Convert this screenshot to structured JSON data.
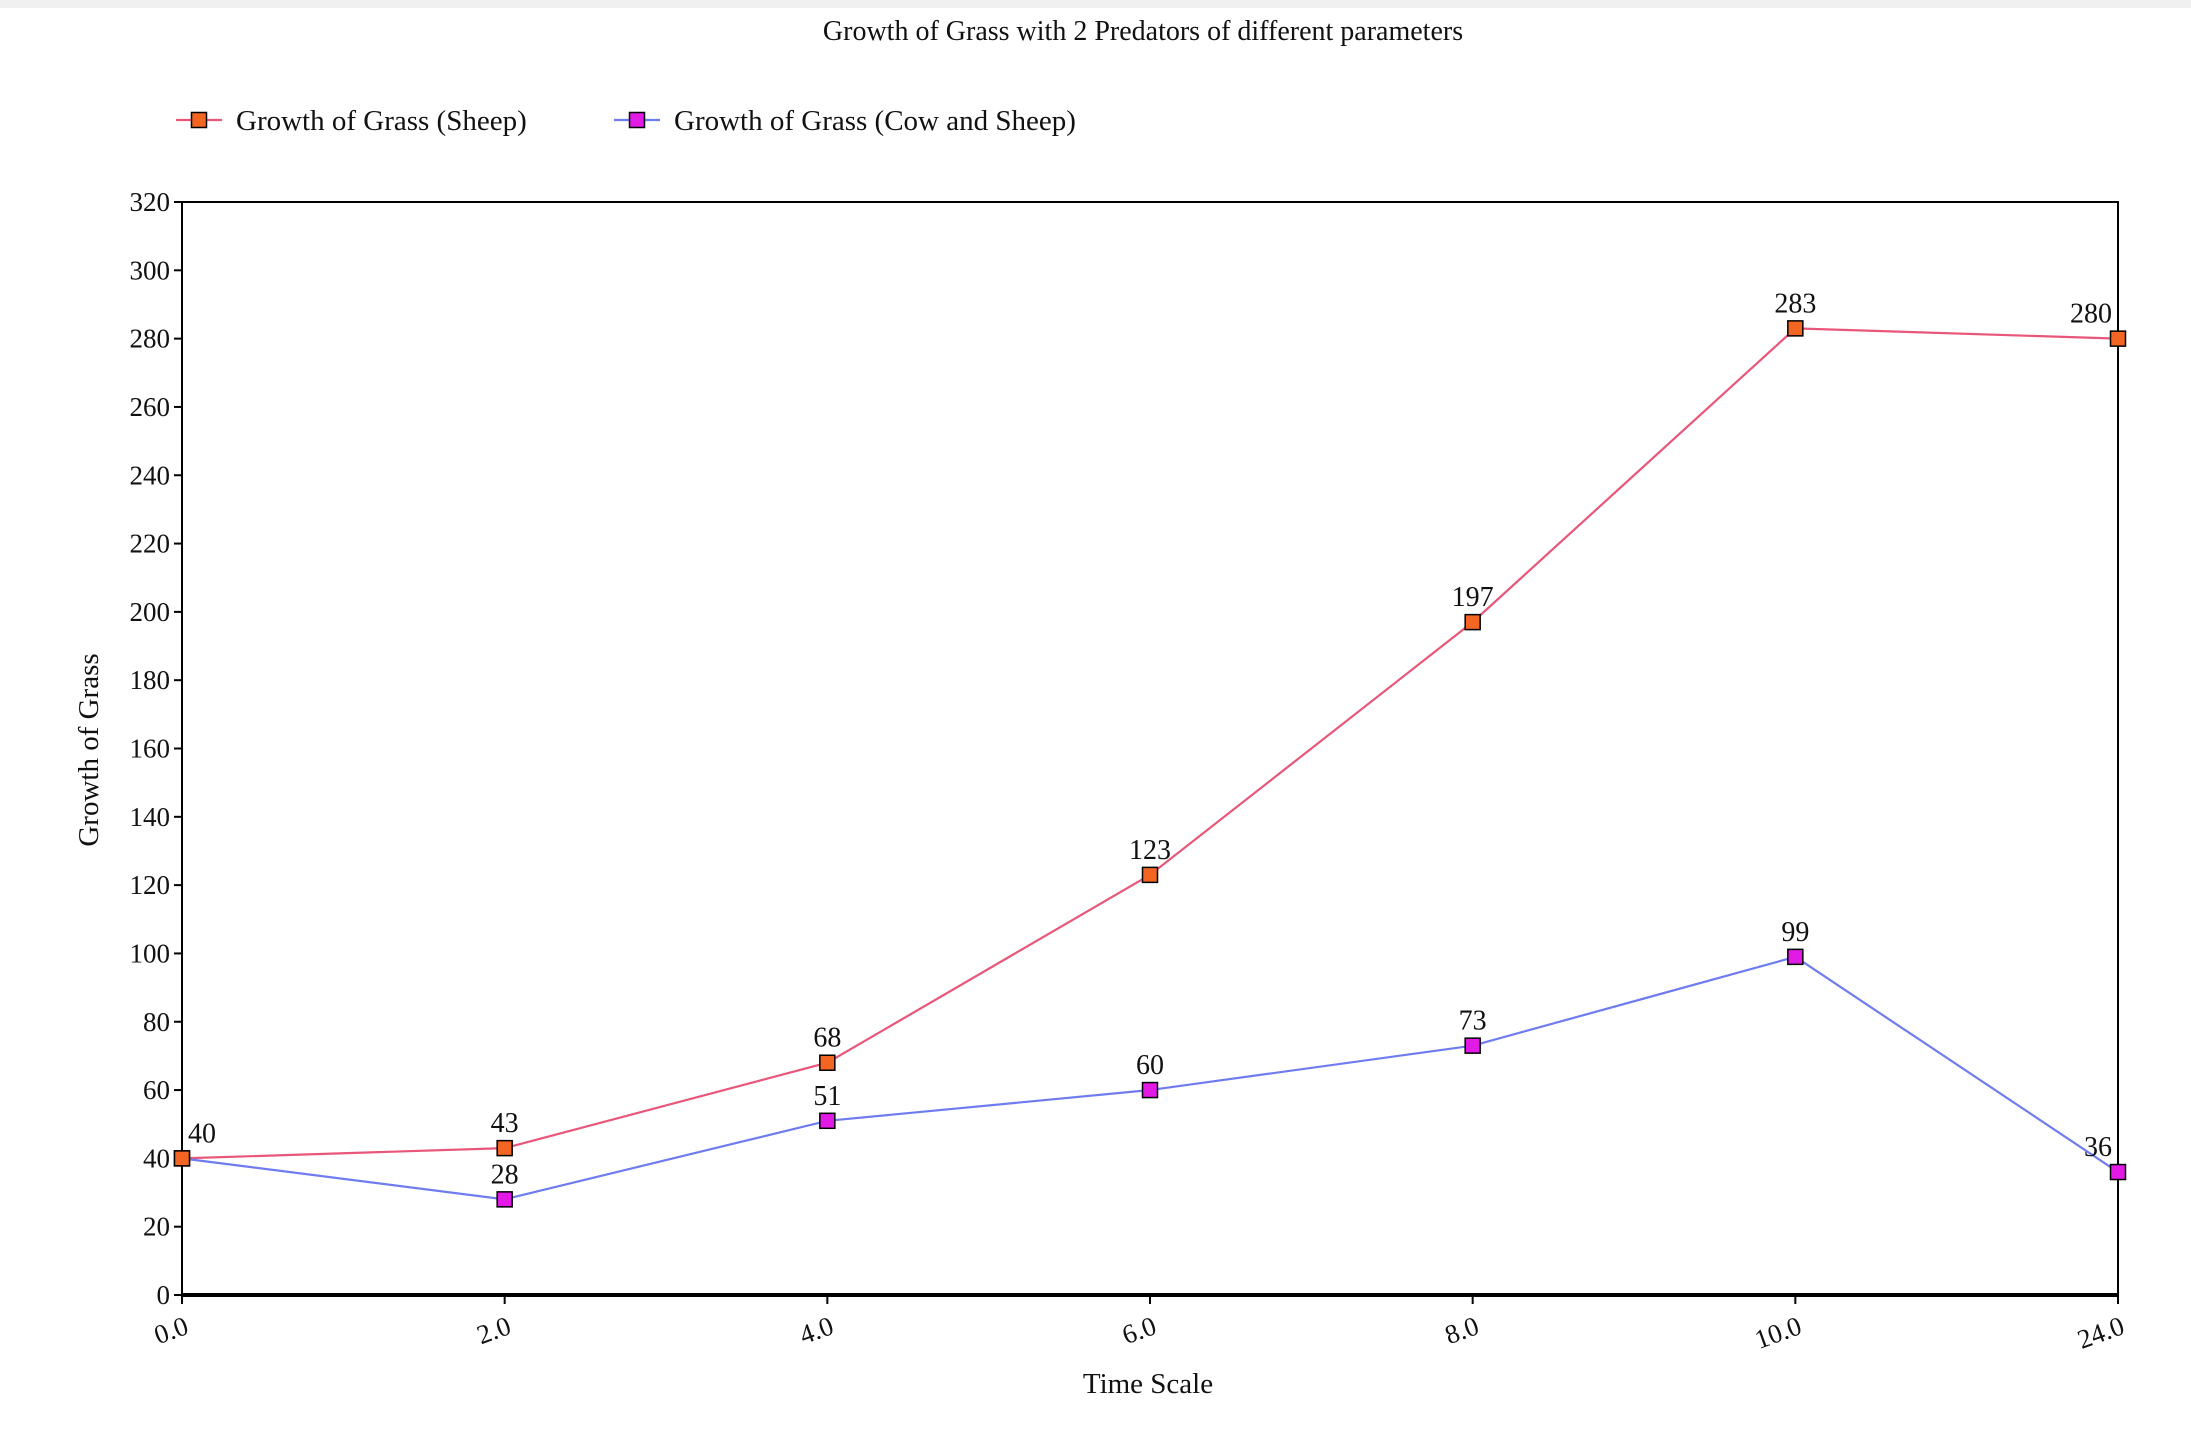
{
  "chart_data": {
    "type": "line",
    "title": "Growth of Grass with 2 Predators of different parameters",
    "xlabel": "Time Scale",
    "ylabel": "Growth of Grass",
    "categories": [
      "0.0",
      "2.0",
      "4.0",
      "6.0",
      "8.0",
      "10.0",
      "24.0"
    ],
    "y_ticks": [
      "0",
      "20",
      "40",
      "60",
      "80",
      "100",
      "120",
      "140",
      "160",
      "180",
      "200",
      "220",
      "240",
      "260",
      "280",
      "300",
      "320"
    ],
    "ylim": [
      0,
      320
    ],
    "grid": false,
    "legend_position": "top-left",
    "series": [
      {
        "name": "Growth of Grass (Sheep)",
        "values": [
          40,
          43,
          68,
          123,
          197,
          283,
          280
        ],
        "data_labels": [
          "40",
          "43",
          "68",
          "123",
          "197",
          "283",
          "280"
        ],
        "line_color": "#e8577a",
        "marker_color": "#f26522"
      },
      {
        "name": "Growth of Grass (Cow and Sheep)",
        "values": [
          40,
          28,
          51,
          60,
          73,
          99,
          36
        ],
        "data_labels": [
          "",
          "28",
          "51",
          "60",
          "73",
          "99",
          "36"
        ],
        "line_color": "#6f7cf0",
        "marker_color": "#e11ae6"
      }
    ]
  }
}
